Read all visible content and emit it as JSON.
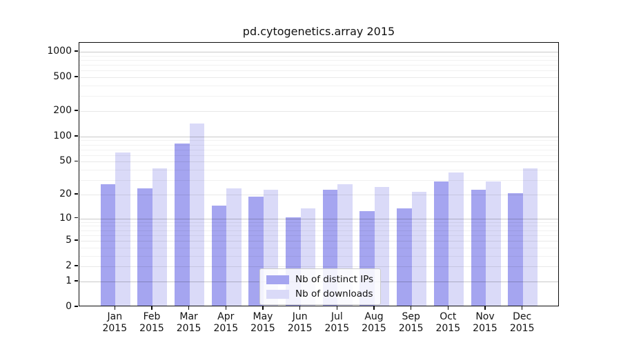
{
  "chart_data": {
    "type": "bar",
    "title": "pd.cytogenetics.array 2015",
    "categories": [
      "Jan",
      "Feb",
      "Mar",
      "Apr",
      "May",
      "Jun",
      "Jul",
      "Aug",
      "Sep",
      "Oct",
      "Nov",
      "Dec"
    ],
    "category_year": "2015",
    "series": [
      {
        "name": "Nb of distinct IPs",
        "color": "#a5a5f0",
        "values": [
          26,
          23,
          80,
          14,
          18,
          10,
          22,
          12,
          13,
          28,
          22,
          20
        ]
      },
      {
        "name": "Nb of downloads",
        "color": "#dadaf8",
        "values": [
          62,
          40,
          137,
          23,
          22,
          13,
          26,
          24,
          21,
          36,
          28,
          40
        ]
      }
    ],
    "yscale": "log1p",
    "ylim": [
      0,
      1000
    ],
    "yticks": [
      1000,
      500,
      200,
      100,
      50,
      20,
      10,
      5,
      2,
      1,
      0
    ],
    "decade_gridlines": [
      1,
      10,
      100,
      1000
    ],
    "mid_gridlines": [
      2,
      5,
      20,
      50,
      200,
      500
    ],
    "minor_gridlines": [
      3,
      4,
      6,
      7,
      8,
      9,
      30,
      40,
      60,
      70,
      80,
      90,
      300,
      400,
      600,
      700,
      800,
      900
    ],
    "grid": true,
    "legend_position": "lower center"
  }
}
